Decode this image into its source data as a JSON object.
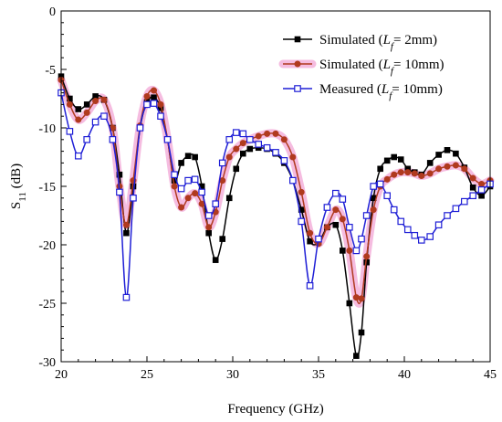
{
  "chart_data": {
    "type": "line",
    "xlabel": "Frequency (GHz)",
    "ylabel": "S11 (dB)",
    "ylabel_main": "S",
    "ylabel_sub": "11",
    "ylabel_unit": " (dB)",
    "xlim": [
      20,
      45
    ],
    "ylim": [
      -30,
      0
    ],
    "xticks": [
      20,
      25,
      30,
      35,
      40,
      45
    ],
    "yticks": [
      0,
      -5,
      -10,
      -15,
      -20,
      -25,
      -30
    ],
    "grid": false,
    "legend_position": "top-right",
    "series": [
      {
        "name": "Simulated (Lf= 2mm)",
        "legend_prefix": "Simulated (",
        "legend_var": "L",
        "legend_sub": "f",
        "legend_suffix": "= 2mm)",
        "color": "#000000",
        "marker": "filled-square",
        "highlight": "",
        "x": [
          20,
          20.5,
          21,
          21.5,
          22,
          22.5,
          23,
          23.4,
          23.8,
          24.2,
          24.6,
          25,
          25.4,
          25.8,
          26.2,
          26.6,
          27,
          27.4,
          27.8,
          28.2,
          28.6,
          29,
          29.4,
          29.8,
          30.2,
          30.6,
          31,
          31.5,
          32,
          32.5,
          33,
          33.5,
          34,
          34.5,
          35,
          35.5,
          36,
          36.4,
          36.8,
          37.2,
          37.5,
          37.8,
          38.2,
          38.6,
          39,
          39.4,
          39.8,
          40.2,
          40.6,
          41,
          41.5,
          42,
          42.5,
          43,
          43.5,
          44,
          44.5,
          45
        ],
        "y": [
          -5.6,
          -7.5,
          -8.4,
          -8.0,
          -7.3,
          -7.6,
          -10.0,
          -14.0,
          -19.0,
          -15.0,
          -10.0,
          -7.8,
          -7.4,
          -8.3,
          -11.0,
          -14.5,
          -13.0,
          -12.4,
          -12.5,
          -15.0,
          -19.0,
          -21.3,
          -19.5,
          -16.0,
          -13.5,
          -12.2,
          -11.8,
          -11.7,
          -11.8,
          -12.2,
          -13.0,
          -14.5,
          -17.0,
          -19.7,
          -19.8,
          -18.5,
          -18.3,
          -20.5,
          -25.0,
          -29.5,
          -27.5,
          -21.5,
          -16.0,
          -13.5,
          -12.8,
          -12.5,
          -12.7,
          -13.5,
          -13.8,
          -14.0,
          -13.0,
          -12.3,
          -11.9,
          -12.2,
          -13.4,
          -15.1,
          -15.8,
          -15.0
        ]
      },
      {
        "name": "Simulated (Lf= 10mm)",
        "legend_prefix": "Simulated (",
        "legend_var": "L",
        "legend_sub": "f",
        "legend_suffix": "= 10mm)",
        "color": "#b03a1e",
        "marker": "filled-circle",
        "highlight": "#f2a6d6",
        "x": [
          20,
          20.5,
          21,
          21.5,
          22,
          22.5,
          23,
          23.4,
          23.8,
          24.2,
          24.6,
          25,
          25.4,
          25.8,
          26.2,
          26.6,
          27,
          27.4,
          27.8,
          28.2,
          28.6,
          29,
          29.4,
          29.8,
          30.2,
          30.6,
          31,
          31.5,
          32,
          32.5,
          33,
          33.5,
          34,
          34.5,
          35,
          35.5,
          36,
          36.4,
          36.8,
          37.2,
          37.5,
          37.8,
          38.2,
          38.6,
          39,
          39.4,
          39.8,
          40.2,
          40.6,
          41,
          41.5,
          42,
          42.5,
          43,
          43.5,
          44,
          44.5,
          45
        ],
        "y": [
          -5.9,
          -8.0,
          -9.3,
          -8.7,
          -7.7,
          -7.6,
          -10.0,
          -15.0,
          -18.3,
          -14.5,
          -9.8,
          -7.3,
          -6.8,
          -8.0,
          -11.0,
          -15.0,
          -16.8,
          -16.0,
          -15.6,
          -16.5,
          -18.5,
          -17.2,
          -14.5,
          -12.5,
          -11.8,
          -11.3,
          -11.0,
          -10.7,
          -10.5,
          -10.5,
          -11.0,
          -12.5,
          -15.5,
          -19.0,
          -19.9,
          -18.5,
          -17.0,
          -17.8,
          -20.5,
          -24.5,
          -24.6,
          -21.0,
          -17.0,
          -15.0,
          -14.4,
          -14.0,
          -13.8,
          -13.8,
          -13.9,
          -14.1,
          -13.9,
          -13.5,
          -13.3,
          -13.2,
          -13.5,
          -14.3,
          -14.8,
          -14.5
        ]
      },
      {
        "name": "Measured (Lf= 10mm)",
        "legend_prefix": "Measured (",
        "legend_var": "L",
        "legend_sub": "f",
        "legend_suffix": "= 10mm)",
        "color": "#1f1fd6",
        "marker": "open-square",
        "highlight": "",
        "x": [
          20,
          20.5,
          21,
          21.5,
          22,
          22.5,
          23,
          23.4,
          23.8,
          24.2,
          24.6,
          25,
          25.4,
          25.8,
          26.2,
          26.6,
          27,
          27.4,
          27.8,
          28.2,
          28.6,
          29,
          29.4,
          29.8,
          30.2,
          30.6,
          31,
          31.5,
          32,
          32.5,
          33,
          33.5,
          34,
          34.5,
          35,
          35.5,
          36,
          36.4,
          36.8,
          37.2,
          37.5,
          37.8,
          38.2,
          38.6,
          39,
          39.4,
          39.8,
          40.2,
          40.6,
          41,
          41.5,
          42,
          42.5,
          43,
          43.5,
          44,
          44.5,
          45
        ],
        "y": [
          -7.0,
          -10.3,
          -12.4,
          -11.0,
          -9.5,
          -9.0,
          -11.0,
          -15.5,
          -24.5,
          -16.0,
          -10.0,
          -8.0,
          -7.9,
          -9.0,
          -11.0,
          -14.0,
          -15.2,
          -14.5,
          -14.4,
          -15.5,
          -17.5,
          -16.5,
          -13.0,
          -11.0,
          -10.4,
          -10.5,
          -11.0,
          -11.4,
          -11.7,
          -12.1,
          -12.8,
          -14.5,
          -18.0,
          -23.5,
          -19.5,
          -16.8,
          -15.6,
          -16.1,
          -18.5,
          -20.5,
          -19.5,
          -17.5,
          -15.0,
          -14.8,
          -15.8,
          -17.0,
          -18.0,
          -18.7,
          -19.2,
          -19.6,
          -19.3,
          -18.3,
          -17.5,
          -16.9,
          -16.3,
          -15.8,
          -15.3,
          -14.8
        ]
      }
    ]
  }
}
